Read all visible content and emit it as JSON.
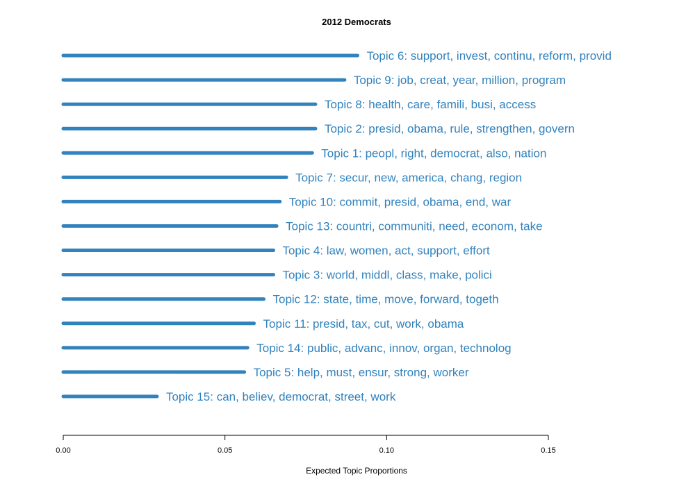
{
  "chart_data": {
    "type": "bar",
    "orientation": "horizontal",
    "title": "2012 Democrats",
    "xlabel": "Expected Topic Proportions",
    "ylabel": "",
    "xlim": [
      0,
      0.15
    ],
    "xticks": [
      0.0,
      0.05,
      0.1,
      0.15
    ],
    "xtick_labels": [
      "0.00",
      "0.05",
      "0.10",
      "0.15"
    ],
    "grid": false,
    "legend": "none",
    "color": "#3182bd",
    "categories": [
      "Topic 6: support, invest, continu, reform, provid",
      "Topic 9: job, creat, year, million, program",
      "Topic 8: health, care, famili, busi, access",
      "Topic 2: presid, obama, rule, strengthen, govern",
      "Topic 1: peopl, right, democrat, also, nation",
      "Topic 7: secur, new, america, chang, region",
      "Topic 10: commit, presid, obama, end, war",
      "Topic 13: countri, communiti, need, econom, take",
      "Topic 4: law, women, act, support, effort",
      "Topic 3: world, middl, class, make, polici",
      "Topic 12: state, time, move, forward, togeth",
      "Topic 11: presid, tax, cut, work, obama",
      "Topic 14: public, advanc, innov, organ, technolog",
      "Topic 5: help, must, ensur, strong, worker",
      "Topic 15: can, believ, democrat, street, work"
    ],
    "values": [
      0.091,
      0.087,
      0.078,
      0.078,
      0.077,
      0.069,
      0.067,
      0.066,
      0.065,
      0.065,
      0.062,
      0.059,
      0.057,
      0.056,
      0.029
    ]
  }
}
